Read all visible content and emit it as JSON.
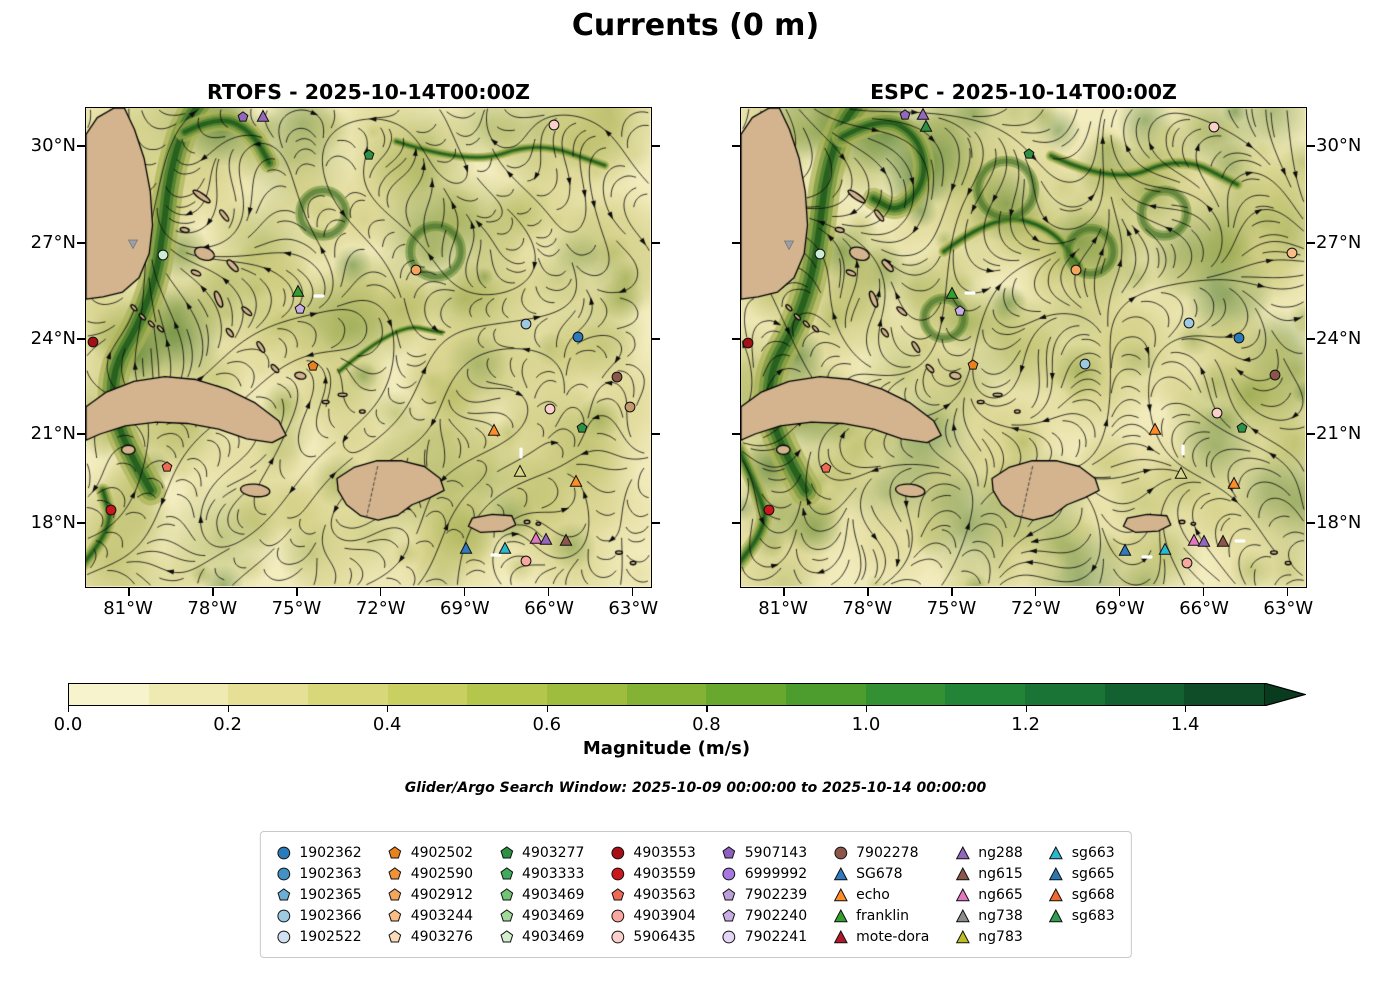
{
  "title": "Currents (0 m)",
  "panels": [
    {
      "id": "rtofs",
      "title": "RTOFS - 2025-10-14T00:00Z"
    },
    {
      "id": "espc",
      "title": "ESPC - 2025-10-14T00:00Z"
    }
  ],
  "axes": {
    "lat_ticks": [
      "30°N",
      "27°N",
      "24°N",
      "21°N",
      "18°N"
    ],
    "lon_ticks": [
      "81°W",
      "78°W",
      "75°W",
      "72°W",
      "69°W",
      "66°W",
      "63°W"
    ]
  },
  "colorbar": {
    "label": "Magnitude (m/s)",
    "tick_labels": [
      "0.0",
      "0.2",
      "0.4",
      "0.6",
      "0.8",
      "1.0",
      "1.2",
      "1.4"
    ],
    "segment_colors": [
      "#f7f3cd",
      "#efeab1",
      "#e5e095",
      "#d8d87b",
      "#c9cf61",
      "#b5c64d",
      "#9ebc3e",
      "#84b234",
      "#68a82f",
      "#4c9d2e",
      "#339133",
      "#228437",
      "#197436",
      "#136130",
      "#0e4d27"
    ],
    "extend_color": "#093b1e"
  },
  "caption": "Glider/Argo Search Window: 2025-10-09 00:00:00 to 2025-10-14 00:00:00",
  "legend": {
    "columns": [
      {
        "entries": [
          {
            "label": "1902362",
            "marker": "circle",
            "color": "#2b7bba"
          },
          {
            "label": "1902363",
            "marker": "circle",
            "color": "#4292c6"
          },
          {
            "label": "1902365",
            "marker": "pentagon",
            "color": "#6baed6"
          },
          {
            "label": "1902366",
            "marker": "circle",
            "color": "#9ecae1"
          },
          {
            "label": "1902522",
            "marker": "circle",
            "color": "#cfe1f2"
          }
        ]
      },
      {
        "entries": [
          {
            "label": "4902502",
            "marker": "pentagon",
            "color": "#e8821e"
          },
          {
            "label": "4902590",
            "marker": "pentagon",
            "color": "#f29135"
          },
          {
            "label": "4902912",
            "marker": "pentagon",
            "color": "#f6a55c"
          },
          {
            "label": "4903244",
            "marker": "pentagon",
            "color": "#f9bd85"
          },
          {
            "label": "4903276",
            "marker": "pentagon",
            "color": "#fbdcb9"
          }
        ]
      },
      {
        "entries": [
          {
            "label": "4903277",
            "marker": "pentagon",
            "color": "#2d9144"
          },
          {
            "label": "4903333",
            "marker": "pentagon",
            "color": "#41ab5d"
          },
          {
            "label": "4903469",
            "marker": "pentagon",
            "color": "#74c476"
          },
          {
            "label": "4903469",
            "marker": "pentagon",
            "color": "#a1d99b"
          },
          {
            "label": "4903469",
            "marker": "pentagon",
            "color": "#d3eecd"
          }
        ]
      },
      {
        "entries": [
          {
            "label": "4903553",
            "marker": "circle",
            "color": "#a50f15"
          },
          {
            "label": "4903559",
            "marker": "circle",
            "color": "#cb181d"
          },
          {
            "label": "4903563",
            "marker": "pentagon",
            "color": "#ef6a55"
          },
          {
            "label": "4903904",
            "marker": "circle",
            "color": "#f9a8a0"
          },
          {
            "label": "5906435",
            "marker": "circle",
            "color": "#fcd0ca"
          }
        ]
      },
      {
        "entries": [
          {
            "label": "5907143",
            "marker": "pentagon",
            "color": "#8e5fc0"
          },
          {
            "label": "6999992",
            "marker": "circle",
            "color": "#a678e2"
          },
          {
            "label": "7902239",
            "marker": "pentagon",
            "color": "#bc9fd8"
          },
          {
            "label": "7902240",
            "marker": "pentagon",
            "color": "#c9aee5"
          },
          {
            "label": "7902241",
            "marker": "circle",
            "color": "#e4d5f5"
          }
        ]
      },
      {
        "entries": [
          {
            "label": "7902278",
            "marker": "circle",
            "color": "#8c564b"
          },
          {
            "label": "SG678",
            "marker": "triangle",
            "color": "#2f7bbf"
          },
          {
            "label": "echo",
            "marker": "triangle",
            "color": "#ff8c26"
          },
          {
            "label": "franklin",
            "marker": "triangle",
            "color": "#33a02c"
          },
          {
            "label": "mote-dora",
            "marker": "triangle",
            "color": "#b2182b"
          }
        ]
      },
      {
        "entries": [
          {
            "label": "ng288",
            "marker": "triangle",
            "color": "#9467bd"
          },
          {
            "label": "ng615",
            "marker": "triangle",
            "color": "#8c564b"
          },
          {
            "label": "ng665",
            "marker": "triangle",
            "color": "#e377c2"
          },
          {
            "label": "ng738",
            "marker": "triangle",
            "color": "#8c8c8c"
          },
          {
            "label": "ng783",
            "marker": "triangle",
            "color": "#bcbd22"
          }
        ]
      },
      {
        "entries": [
          {
            "label": "sg663",
            "marker": "triangle",
            "color": "#29b8ce"
          },
          {
            "label": "sg665",
            "marker": "triangle",
            "color": "#2878b5"
          },
          {
            "label": "sg668",
            "marker": "triangle",
            "color": "#f16a2d"
          },
          {
            "label": "sg683",
            "marker": "triangle",
            "color": "#2f9e4f"
          }
        ]
      }
    ]
  },
  "map": {
    "land_color": "#d3b48e",
    "sea_base_color": "#f3ecbe",
    "markers": {
      "rtofs": [
        {
          "type": "pentagon",
          "color": "#9467bd",
          "x": 27.8,
          "y": 1.8
        },
        {
          "type": "triangle",
          "color": "#9467bd",
          "x": 31.3,
          "y": 1.6
        },
        {
          "type": "circle",
          "color": "#fcd0ca",
          "x": 82.8,
          "y": 3.6
        },
        {
          "type": "pentagon",
          "color": "#2d9144",
          "x": 50.1,
          "y": 9.8
        },
        {
          "type": "circle",
          "color": "#ccecd4",
          "x": 13.7,
          "y": 30.6
        },
        {
          "type": "arrow-down",
          "color": "#9aa0a6",
          "x": 8.3,
          "y": 28.3
        },
        {
          "type": "circle",
          "color": "#f6a55c",
          "x": 58.4,
          "y": 33.9
        },
        {
          "type": "triangle",
          "color": "#33a02c",
          "x": 37.6,
          "y": 38.2
        },
        {
          "type": "dash",
          "color": "#ffffff",
          "x": 41.3,
          "y": 39.3,
          "rot": 0
        },
        {
          "type": "pentagon",
          "color": "#c9aee5",
          "x": 37.9,
          "y": 41.9
        },
        {
          "type": "circle",
          "color": "#9ecae1",
          "x": 77.9,
          "y": 45.0
        },
        {
          "type": "circle",
          "color": "#2b7bba",
          "x": 87.1,
          "y": 47.9
        },
        {
          "type": "circle",
          "color": "#a50f15",
          "x": 1.2,
          "y": 48.8
        },
        {
          "type": "pentagon",
          "color": "#e8821e",
          "x": 40.2,
          "y": 53.8
        },
        {
          "type": "circle",
          "color": "#8c564b",
          "x": 93.9,
          "y": 56.2
        },
        {
          "type": "circle",
          "color": "#fcd0ca",
          "x": 82.1,
          "y": 62.9
        },
        {
          "type": "circle",
          "color": "#c49a6c",
          "x": 96.2,
          "y": 62.4
        },
        {
          "type": "triangle",
          "color": "#ff8c26",
          "x": 72.3,
          "y": 67.3
        },
        {
          "type": "pentagon",
          "color": "#2d9144",
          "x": 87.8,
          "y": 66.9
        },
        {
          "type": "pentagon",
          "color": "#ef6a55",
          "x": 14.3,
          "y": 74.9
        },
        {
          "type": "dash",
          "color": "#ffffff",
          "x": 77.0,
          "y": 72.0,
          "rot": 90
        },
        {
          "type": "triangle",
          "color": "#d9d98a",
          "x": 76.9,
          "y": 75.8
        },
        {
          "type": "triangle",
          "color": "#ff8c26",
          "x": 86.8,
          "y": 77.8
        },
        {
          "type": "circle",
          "color": "#cb181d",
          "x": 4.4,
          "y": 83.9
        },
        {
          "type": "triangle",
          "color": "#2f7bbf",
          "x": 67.2,
          "y": 91.9
        },
        {
          "type": "dash",
          "color": "#ffffff",
          "x": 72.6,
          "y": 93.4,
          "rot": 0
        },
        {
          "type": "triangle",
          "color": "#29b8ce",
          "x": 74.2,
          "y": 91.8
        },
        {
          "type": "triangle",
          "color": "#e377c2",
          "x": 79.6,
          "y": 89.8
        },
        {
          "type": "triangle",
          "color": "#9467bd",
          "x": 81.5,
          "y": 89.9
        },
        {
          "type": "triangle",
          "color": "#8c564b",
          "x": 84.9,
          "y": 90.1
        },
        {
          "type": "circle",
          "color": "#f9a8a0",
          "x": 77.8,
          "y": 94.6
        }
      ],
      "espc": [
        {
          "type": "pentagon",
          "color": "#9467bd",
          "x": 29.0,
          "y": 1.4
        },
        {
          "type": "triangle",
          "color": "#9467bd",
          "x": 32.3,
          "y": 1.3
        },
        {
          "type": "triangle",
          "color": "#2d9144",
          "x": 32.8,
          "y": 3.8
        },
        {
          "type": "circle",
          "color": "#fcd0ca",
          "x": 83.8,
          "y": 4.0
        },
        {
          "type": "pentagon",
          "color": "#2d9144",
          "x": 51.0,
          "y": 9.6
        },
        {
          "type": "circle",
          "color": "#ccecd4",
          "x": 14.0,
          "y": 30.4
        },
        {
          "type": "arrow-down",
          "color": "#9aa0a6",
          "x": 8.5,
          "y": 28.5
        },
        {
          "type": "circle",
          "color": "#f6a55c",
          "x": 59.3,
          "y": 33.8
        },
        {
          "type": "circle",
          "color": "#f9bd85",
          "x": 97.6,
          "y": 30.2
        },
        {
          "type": "triangle",
          "color": "#33a02c",
          "x": 37.3,
          "y": 38.6
        },
        {
          "type": "dash",
          "color": "#ffffff",
          "x": 40.6,
          "y": 38.6,
          "rot": 0
        },
        {
          "type": "pentagon",
          "color": "#c9aee5",
          "x": 38.8,
          "y": 42.4
        },
        {
          "type": "circle",
          "color": "#9ecae1",
          "x": 79.3,
          "y": 44.8
        },
        {
          "type": "circle",
          "color": "#2b7bba",
          "x": 88.2,
          "y": 48.0
        },
        {
          "type": "circle",
          "color": "#a50f15",
          "x": 1.3,
          "y": 49.0
        },
        {
          "type": "circle",
          "color": "#9ecae1",
          "x": 60.8,
          "y": 53.4
        },
        {
          "type": "pentagon",
          "color": "#e8821e",
          "x": 41.0,
          "y": 53.7
        },
        {
          "type": "circle",
          "color": "#8c564b",
          "x": 94.5,
          "y": 55.8
        },
        {
          "type": "circle",
          "color": "#fcd0ca",
          "x": 84.3,
          "y": 63.6
        },
        {
          "type": "triangle",
          "color": "#ff8c26",
          "x": 73.2,
          "y": 67.0
        },
        {
          "type": "pentagon",
          "color": "#2d9144",
          "x": 88.6,
          "y": 66.8
        },
        {
          "type": "pentagon",
          "color": "#ef6a55",
          "x": 15.0,
          "y": 75.2
        },
        {
          "type": "dash",
          "color": "#ffffff",
          "x": 78.2,
          "y": 71.3,
          "rot": 90
        },
        {
          "type": "triangle",
          "color": "#d9d98a",
          "x": 77.9,
          "y": 76.3
        },
        {
          "type": "triangle",
          "color": "#ff8c26",
          "x": 87.3,
          "y": 78.2
        },
        {
          "type": "circle",
          "color": "#cb181d",
          "x": 5.0,
          "y": 84.0
        },
        {
          "type": "triangle",
          "color": "#2f7bbf",
          "x": 68.0,
          "y": 92.3
        },
        {
          "type": "triangle",
          "color": "#29b8ce",
          "x": 75.0,
          "y": 92.0
        },
        {
          "type": "dash",
          "color": "#ffffff",
          "x": 71.8,
          "y": 93.8,
          "rot": 0
        },
        {
          "type": "triangle",
          "color": "#e377c2",
          "x": 80.2,
          "y": 90.2
        },
        {
          "type": "triangle",
          "color": "#9467bd",
          "x": 82.0,
          "y": 90.3
        },
        {
          "type": "triangle",
          "color": "#8c564b",
          "x": 85.3,
          "y": 90.4
        },
        {
          "type": "dash",
          "color": "#ffffff",
          "x": 88.3,
          "y": 90.3,
          "rot": 0
        },
        {
          "type": "circle",
          "color": "#f9a8a0",
          "x": 78.9,
          "y": 95.0
        }
      ]
    }
  }
}
